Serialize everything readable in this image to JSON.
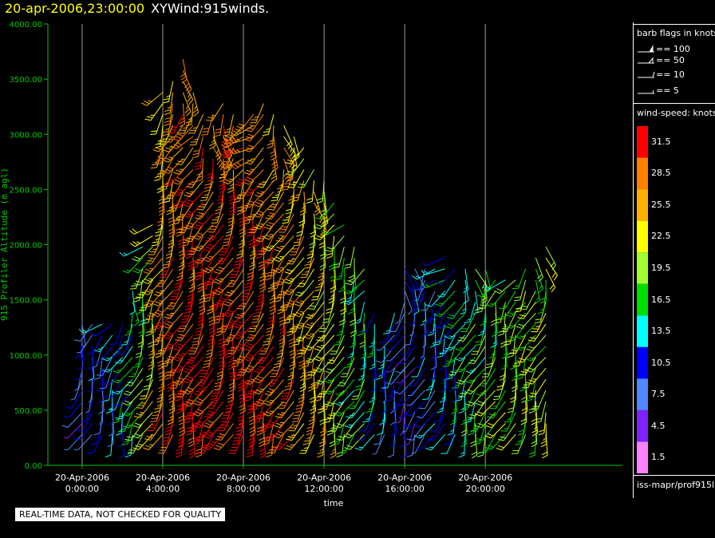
{
  "header": {
    "timestamp": "20-apr-2006,23:00:00",
    "plot_name": "XYWind:915winds."
  },
  "legend": {
    "flags_title": "barb flags in knots",
    "flags": [
      {
        "label": "== 100",
        "kind": "pennant"
      },
      {
        "label": "== 50",
        "kind": "triangle"
      },
      {
        "label": "== 10",
        "kind": "full-barb"
      },
      {
        "label": "== 5",
        "kind": "half-barb"
      }
    ],
    "speed_title": "wind-speed: knots",
    "speed_bins": [
      {
        "label": "31.5",
        "color": "#ff0000"
      },
      {
        "label": "28.5",
        "color": "#ff8000"
      },
      {
        "label": "25.5",
        "color": "#ffb000"
      },
      {
        "label": "22.5",
        "color": "#ffff00"
      },
      {
        "label": "19.5",
        "color": "#a0ff30"
      },
      {
        "label": "16.5",
        "color": "#00dd00"
      },
      {
        "label": "13.5",
        "color": "#00ffff"
      },
      {
        "label": "10.5",
        "color": "#0000ff"
      },
      {
        "label": "7.5",
        "color": "#5088ff"
      },
      {
        "label": "4.5",
        "color": "#8020ff"
      },
      {
        "label": "1.5",
        "color": "#ff80ff"
      }
    ],
    "source": "iss-mapr/prof915l"
  },
  "footer": {
    "qc_notice": "REAL-TIME DATA, NOT CHECKED FOR QUALITY"
  },
  "chart_data": {
    "type": "wind-barb time-height",
    "xlabel": "time",
    "ylabel": "915 Profiler Altitude (m agl)",
    "ylim": [
      0,
      4000
    ],
    "xlim_hours": [
      -1.7,
      26.8
    ],
    "yticks": [
      "0.00",
      "500.00",
      "1000.00",
      "1500.00",
      "2000.00",
      "2500.00",
      "3000.00",
      "3500.00",
      "4000.00"
    ],
    "xticks": [
      {
        "date": "20-Apr-2006",
        "time": "0:00:00",
        "hour": 0
      },
      {
        "date": "20-Apr-2006",
        "time": "4:00:00",
        "hour": 4
      },
      {
        "date": "20-Apr-2006",
        "time": "8:00:00",
        "hour": 8
      },
      {
        "date": "20-Apr-2006",
        "time": "12:00:00",
        "hour": 12
      },
      {
        "date": "20-Apr-2006",
        "time": "16:00:00",
        "hour": 16
      },
      {
        "date": "20-Apr-2006",
        "time": "20:00:00",
        "hour": 20
      }
    ],
    "vertical_grid": true,
    "profile_interval_hours": 0.5,
    "first_profile_hour": 0,
    "last_profile_hour": 23,
    "bottom_gate_m": 280,
    "gate_spacing_m": 100,
    "profile_tops_m": [
      [
        0,
        1300
      ],
      [
        1,
        1350
      ],
      [
        2,
        1300
      ],
      [
        3,
        2000
      ],
      [
        3.5,
        2200
      ],
      [
        4,
        3400
      ],
      [
        5,
        3700
      ],
      [
        6,
        3200
      ],
      [
        7,
        3300
      ],
      [
        8,
        3100
      ],
      [
        9,
        3300
      ],
      [
        10,
        3100
      ],
      [
        11,
        2900
      ],
      [
        12,
        2600
      ],
      [
        13,
        2200
      ],
      [
        14,
        1800
      ],
      [
        15,
        1100
      ],
      [
        16,
        1800
      ],
      [
        17,
        1800
      ],
      [
        18,
        1900
      ],
      [
        19,
        1800
      ],
      [
        20,
        1800
      ],
      [
        21,
        1700
      ],
      [
        22,
        1800
      ],
      [
        23,
        2000
      ]
    ],
    "speed_profile_knots": [
      [
        0,
        8
      ],
      [
        1,
        9
      ],
      [
        2,
        12
      ],
      [
        3,
        18
      ],
      [
        4,
        28
      ],
      [
        5,
        31
      ],
      [
        6,
        32
      ],
      [
        7,
        32
      ],
      [
        8,
        32
      ],
      [
        9,
        31
      ],
      [
        10,
        29
      ],
      [
        11,
        27
      ],
      [
        12,
        24
      ],
      [
        13,
        20
      ],
      [
        14,
        16
      ],
      [
        15,
        10
      ],
      [
        16,
        8
      ],
      [
        17,
        9
      ],
      [
        18,
        12
      ],
      [
        19,
        16
      ],
      [
        20,
        18
      ],
      [
        21,
        19
      ],
      [
        22,
        20
      ],
      [
        23,
        21
      ]
    ],
    "upper_level_speed_knots": 13,
    "direction_deg_from": 200
  }
}
